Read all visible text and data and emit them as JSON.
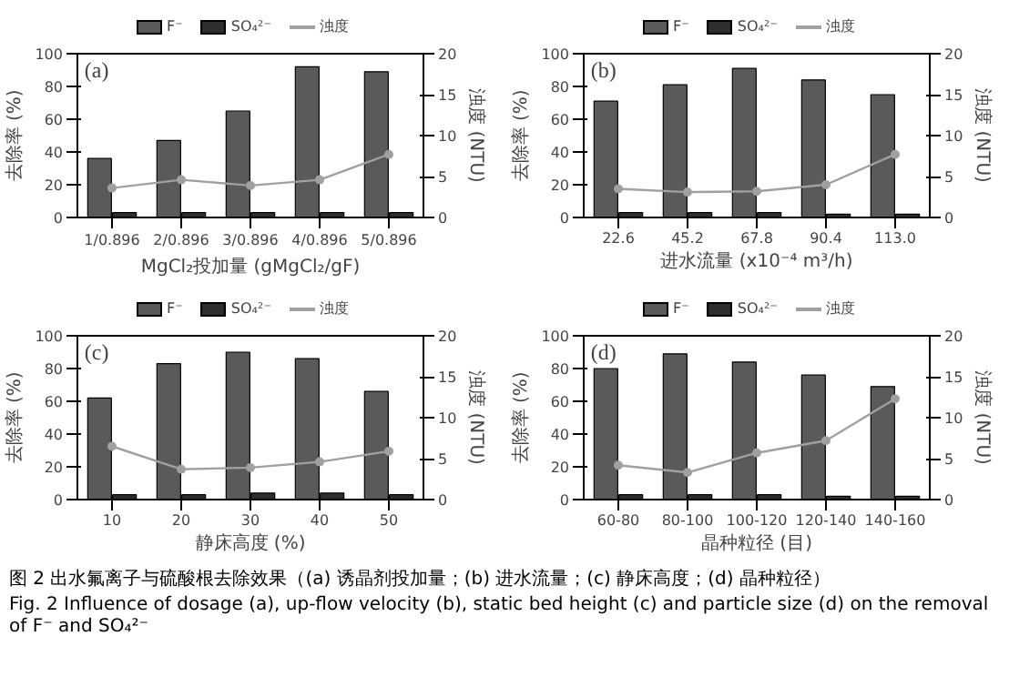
{
  "chart_data": [
    {
      "type": "bar",
      "categories": [
        "1/0.896",
        "2/0.896",
        "3/0.896",
        "4/0.896",
        "5/0.896"
      ],
      "xlabel": "MgCl₂投加量 (gMgCl₂/gF)",
      "ylabel": "去除率 (%)",
      "y2label": "浊度 (NTU)",
      "ylim": [
        0,
        100
      ],
      "yticks": [
        0,
        20,
        40,
        60,
        80,
        100
      ],
      "y2lim": [
        0,
        20
      ],
      "y2ticks": [
        0,
        5,
        10,
        15,
        20
      ],
      "legend": "top",
      "marker": "circle",
      "annotations": [
        "(a)"
      ],
      "series": [
        {
          "name": "F⁻",
          "color": "#5a5a5a",
          "values": [
            36,
            47,
            65,
            92,
            89
          ]
        },
        {
          "name": "SO₄²⁻",
          "color": "#2e2e2e",
          "values": [
            3,
            3,
            3,
            3,
            3
          ]
        },
        {
          "name": "浊度",
          "type": "line",
          "axis": "y2",
          "color": "#a0a0a0",
          "values": [
            3.6,
            4.6,
            3.9,
            4.6,
            7.7
          ]
        }
      ]
    },
    {
      "type": "bar",
      "categories": [
        "22.6",
        "45.2",
        "67.8",
        "90.4",
        "113.0"
      ],
      "xlabel": "进水流量 (x10⁻⁴ m³/h)",
      "ylabel": "去除率 (%)",
      "y2label": "浊度 (NTU)",
      "ylim": [
        0,
        100
      ],
      "yticks": [
        0,
        20,
        40,
        60,
        80,
        100
      ],
      "y2lim": [
        0,
        20
      ],
      "y2ticks": [
        0,
        5,
        10,
        15,
        20
      ],
      "legend": "top",
      "marker": "circle",
      "annotations": [
        "(b)"
      ],
      "series": [
        {
          "name": "F⁻",
          "color": "#5a5a5a",
          "values": [
            71,
            81,
            91,
            84,
            75
          ]
        },
        {
          "name": "SO₄²⁻",
          "color": "#2e2e2e",
          "values": [
            3,
            3,
            3,
            2,
            2
          ]
        },
        {
          "name": "浊度",
          "type": "line",
          "axis": "y2",
          "color": "#a0a0a0",
          "values": [
            3.5,
            3.1,
            3.2,
            4.0,
            7.7
          ]
        }
      ]
    },
    {
      "type": "bar",
      "categories": [
        "10",
        "20",
        "30",
        "40",
        "50"
      ],
      "xlabel": "静床高度 (%)",
      "ylabel": "去除率 (%)",
      "y2label": "浊度 (NTU)",
      "ylim": [
        0,
        100
      ],
      "yticks": [
        0,
        20,
        40,
        60,
        80,
        100
      ],
      "y2lim": [
        0,
        20
      ],
      "y2ticks": [
        0,
        5,
        10,
        15,
        20
      ],
      "legend": "top",
      "marker": "circle",
      "annotations": [
        "(c)"
      ],
      "series": [
        {
          "name": "F⁻",
          "color": "#5a5a5a",
          "values": [
            62,
            83,
            90,
            86,
            66
          ]
        },
        {
          "name": "SO₄²⁻",
          "color": "#2e2e2e",
          "values": [
            3,
            3,
            4,
            4,
            3
          ]
        },
        {
          "name": "浊度",
          "type": "line",
          "axis": "y2",
          "color": "#a0a0a0",
          "values": [
            6.5,
            3.7,
            3.9,
            4.6,
            5.9
          ]
        }
      ]
    },
    {
      "type": "bar",
      "categories": [
        "60-80",
        "80-100",
        "100-120",
        "120-140",
        "140-160"
      ],
      "xlabel": "晶种粒径 (目)",
      "ylabel": "去除率 (%)",
      "y2label": "浊度 (NTU)",
      "ylim": [
        0,
        100
      ],
      "yticks": [
        0,
        20,
        40,
        60,
        80,
        100
      ],
      "y2lim": [
        0,
        20
      ],
      "y2ticks": [
        0,
        5,
        10,
        15,
        20
      ],
      "legend": "top",
      "marker": "circle",
      "annotations": [
        "(d)",
        "图 2  出水氟离子与硫酸根去除效果（(a) 诱晶剂投加量；(b) 进水流量；(c) 静床高度；(d) 晶种粒径）",
        "Fig. 2 Influence of dosage (a), up-flow velocity (b), static bed height (c) and particle size (d) on the removal of F⁻ and SO₄²⁻"
      ],
      "series": [
        {
          "name": "F⁻",
          "color": "#5a5a5a",
          "values": [
            80,
            89,
            84,
            76,
            69
          ]
        },
        {
          "name": "SO₄²⁻",
          "color": "#2e2e2e",
          "values": [
            3,
            3,
            3,
            2,
            2
          ]
        },
        {
          "name": "浊度",
          "type": "line",
          "axis": "y2",
          "color": "#a0a0a0",
          "values": [
            4.2,
            3.3,
            5.7,
            7.2,
            12.3
          ]
        }
      ]
    }
  ]
}
